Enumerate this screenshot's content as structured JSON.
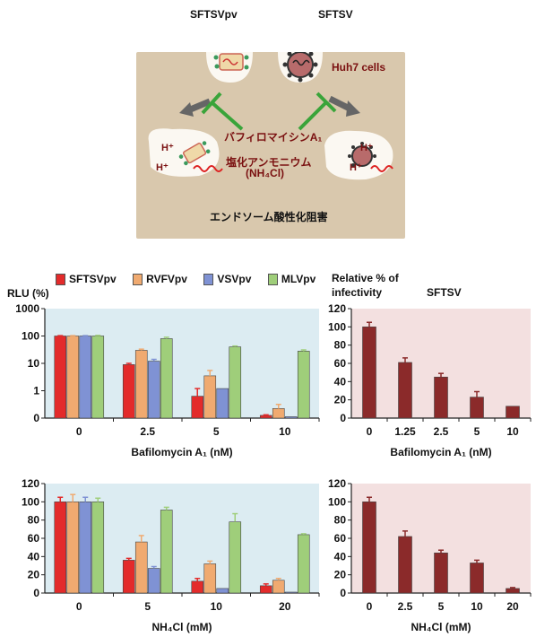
{
  "diagram": {
    "top_left_label": "SFTSVpv",
    "top_right_label": "SFTSV",
    "cells_label": "Huh7 cells",
    "hplus_1": "H⁺",
    "hplus_2": "H⁺",
    "hplus_3": "H⁺",
    "hplus_4": "H⁺",
    "drug1": "バフィロマイシンA₁",
    "drug2": "塩化アンモニウム",
    "drug2_formula": "(NH₄Cl)",
    "caption": "エンドソーム酸性化阻害"
  },
  "legend": {
    "items": [
      {
        "label": "SFTSVpv",
        "color": "#e32b2b"
      },
      {
        "label": "RVFVpv",
        "color": "#f0aa70"
      },
      {
        "label": "VSVpv",
        "color": "#7f92d4"
      },
      {
        "label": "MLVpv",
        "color": "#9fce7a"
      }
    ]
  },
  "right_header": {
    "ylabel_line1": "Relative % of",
    "ylabel_line2": "infectivity",
    "title": "SFTSV"
  },
  "left_top_ylabel": "RLU (%)",
  "colors": {
    "left_panel_bg": "#dcecf2",
    "right_panel_bg": "#f3e0e0",
    "sftsv_bar": "#8b2a2a",
    "diagram_bg": "#d9c8ad",
    "inhibit_green": "#3aa43a"
  },
  "chart_data": [
    {
      "type": "bar",
      "ylabel": "RLU (%)",
      "yscale": "log",
      "ylim": [
        0,
        1000
      ],
      "yticks": [
        "0",
        "1",
        "10",
        "100",
        "1000"
      ],
      "xlabel": "Bafilomycin A₁ (nM)",
      "categories": [
        "0",
        "2.5",
        "5",
        "10"
      ],
      "series": [
        {
          "name": "SFTSVpv",
          "values": [
            100,
            9,
            0.8,
            0.1
          ],
          "errors": [
            3,
            1,
            0.4,
            0.02
          ]
        },
        {
          "name": "RVFVpv",
          "values": [
            100,
            30,
            3.5,
            0.35
          ],
          "errors": [
            3,
            3,
            2,
            0.15
          ]
        },
        {
          "name": "VSVpv",
          "values": [
            100,
            12,
            1.2,
            0.05
          ],
          "errors": [
            3,
            2,
            0,
            0
          ]
        },
        {
          "name": "MLVpv",
          "values": [
            100,
            80,
            40,
            28
          ],
          "errors": [
            5,
            10,
            3,
            3
          ]
        }
      ]
    },
    {
      "type": "bar",
      "ylabel": "Relative % of infectivity",
      "title": "SFTSV",
      "ylim": [
        0,
        120
      ],
      "yticks": [
        "0",
        "20",
        "40",
        "60",
        "80",
        "100",
        "120"
      ],
      "xlabel": "Bafilomycin A₁ (nM)",
      "categories": [
        "0",
        "1.25",
        "2.5",
        "5",
        "10"
      ],
      "series": [
        {
          "name": "SFTSV",
          "values": [
            100,
            61,
            45,
            23,
            13
          ],
          "errors": [
            5,
            5,
            4,
            6,
            0
          ]
        }
      ]
    },
    {
      "type": "bar",
      "ylim": [
        0,
        120
      ],
      "yticks": [
        "0",
        "20",
        "40",
        "60",
        "80",
        "100",
        "120"
      ],
      "xlabel": "NH₄Cl (mM)",
      "categories": [
        "0",
        "5",
        "10",
        "20"
      ],
      "series": [
        {
          "name": "SFTSVpv",
          "values": [
            100,
            36,
            13,
            8
          ],
          "errors": [
            5,
            2,
            3,
            2
          ]
        },
        {
          "name": "RVFVpv",
          "values": [
            100,
            56,
            32,
            14
          ],
          "errors": [
            8,
            7,
            3,
            2
          ]
        },
        {
          "name": "VSVpv",
          "values": [
            100,
            27,
            5,
            1
          ],
          "errors": [
            5,
            2,
            0,
            0
          ]
        },
        {
          "name": "MLVpv",
          "values": [
            100,
            91,
            78,
            64
          ],
          "errors": [
            4,
            3,
            9,
            1
          ]
        }
      ]
    },
    {
      "type": "bar",
      "ylim": [
        0,
        120
      ],
      "yticks": [
        "0",
        "20",
        "40",
        "60",
        "80",
        "100",
        "120"
      ],
      "xlabel": "NH₄Cl (mM)",
      "categories": [
        "0",
        "2.5",
        "5",
        "10",
        "20"
      ],
      "series": [
        {
          "name": "SFTSV",
          "values": [
            100,
            62,
            44,
            33,
            5
          ],
          "errors": [
            5,
            6,
            3,
            3,
            1
          ]
        }
      ]
    }
  ]
}
